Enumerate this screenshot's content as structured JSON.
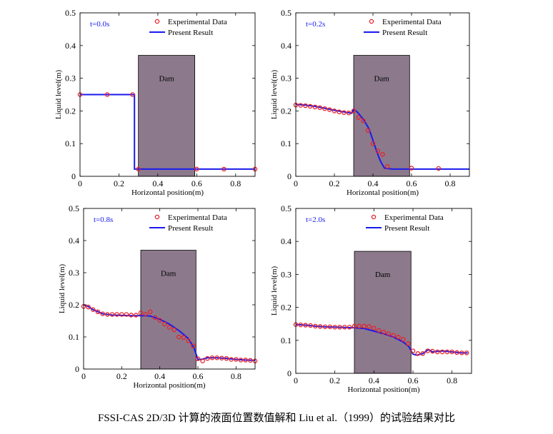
{
  "caption": "FSSI-CAS 2D/3D 计算的液面位置数值解和 Liu et al.（1999）的试验结果对比",
  "colors": {
    "experimental": "#e8202a",
    "present": "#1a1aee",
    "dam_fill": "#8c7a8c",
    "time_label": "#1a1aee"
  },
  "chart_data": [
    {
      "type": "line",
      "time_label": "t=0.0s",
      "xlabel": "Horizontal position(m)",
      "ylabel": "Liquid level(m)",
      "xlim": [
        0,
        0.9
      ],
      "ylim": [
        0,
        0.5
      ],
      "xticks": [
        0,
        0.2,
        0.4,
        0.6,
        0.8
      ],
      "xtick_labels": [
        "0",
        "0.2",
        "0.4",
        "0.6",
        "0.8"
      ],
      "yticks": [
        0,
        0.1,
        0.2,
        0.3,
        0.4,
        0.5
      ],
      "ytick_labels": [
        "0",
        "0.1",
        "0.2",
        "0.3",
        "0.4",
        "0.5"
      ],
      "dam": {
        "label": "Dam",
        "x0": 0.3,
        "x1": 0.59,
        "height": 0.37
      },
      "legend": {
        "position": "top-right",
        "entries": [
          "Experimental Data",
          "Present Result"
        ]
      },
      "series": [
        {
          "name": "Experimental Data",
          "style": "markers",
          "x": [
            0,
            0.14,
            0.27,
            0.3,
            0.6,
            0.74,
            0.9
          ],
          "y": [
            0.25,
            0.25,
            0.25,
            0.022,
            0.022,
            0.022,
            0.022
          ]
        },
        {
          "name": "Present Result",
          "style": "line",
          "x": [
            0,
            0.28,
            0.28,
            0.9
          ],
          "y": [
            0.25,
            0.25,
            0.022,
            0.022
          ]
        }
      ]
    },
    {
      "type": "line",
      "time_label": "t=0.2s",
      "xlabel": "Horizontal position(m)",
      "ylabel": "Liquid level(m)",
      "xlim": [
        0,
        0.9
      ],
      "ylim": [
        0,
        0.5
      ],
      "xticks": [
        0,
        0.2,
        0.4,
        0.6,
        0.8
      ],
      "xtick_labels": [
        "0",
        "0.2",
        "0.4",
        "0.6",
        "0.8"
      ],
      "yticks": [
        0,
        0.1,
        0.2,
        0.3,
        0.4,
        0.5
      ],
      "ytick_labels": [
        "0",
        "0.1",
        "0.2",
        "0.3",
        "0.4",
        "0.5"
      ],
      "dam": {
        "label": "Dam",
        "x0": 0.3,
        "x1": 0.59,
        "height": 0.37
      },
      "legend": {
        "position": "top-right",
        "entries": [
          "Experimental Data",
          "Present Result"
        ]
      },
      "series": [
        {
          "name": "Experimental Data",
          "style": "markers",
          "x": [
            0,
            0.025,
            0.05,
            0.075,
            0.1,
            0.125,
            0.15,
            0.175,
            0.2,
            0.225,
            0.25,
            0.275,
            0.3,
            0.325,
            0.35,
            0.375,
            0.4,
            0.425,
            0.45,
            0.475,
            0.6,
            0.74
          ],
          "y": [
            0.218,
            0.217,
            0.216,
            0.214,
            0.212,
            0.21,
            0.207,
            0.204,
            0.2,
            0.197,
            0.195,
            0.194,
            0.2,
            0.18,
            0.17,
            0.14,
            0.1,
            0.077,
            0.067,
            0.03,
            0.025,
            0.024
          ]
        },
        {
          "name": "Present Result",
          "style": "line",
          "x": [
            0,
            0.05,
            0.1,
            0.15,
            0.2,
            0.25,
            0.29,
            0.3,
            0.32,
            0.35,
            0.38,
            0.4,
            0.42,
            0.44,
            0.46,
            0.5,
            0.6,
            0.9
          ],
          "y": [
            0.22,
            0.218,
            0.214,
            0.208,
            0.202,
            0.197,
            0.193,
            0.206,
            0.196,
            0.175,
            0.145,
            0.11,
            0.075,
            0.045,
            0.025,
            0.022,
            0.022,
            0.022
          ]
        }
      ]
    },
    {
      "type": "line",
      "time_label": "t=0.8s",
      "xlabel": "Horizontal position(m)",
      "ylabel": "Liquid level(m)",
      "xlim": [
        0,
        0.9
      ],
      "ylim": [
        0,
        0.5
      ],
      "xticks": [
        0,
        0.2,
        0.4,
        0.6,
        0.8
      ],
      "xtick_labels": [
        "0",
        "0.2",
        "0.4",
        "0.6",
        "0.8"
      ],
      "yticks": [
        0,
        0.1,
        0.2,
        0.3,
        0.4,
        0.5
      ],
      "ytick_labels": [
        "0",
        "0.1",
        "0.2",
        "0.3",
        "0.4",
        "0.5"
      ],
      "dam": {
        "label": "Dam",
        "x0": 0.3,
        "x1": 0.59,
        "height": 0.37
      },
      "legend": {
        "position": "top-right",
        "entries": [
          "Experimental Data",
          "Present Result"
        ]
      },
      "series": [
        {
          "name": "Experimental Data",
          "style": "markers",
          "x": [
            0,
            0.025,
            0.05,
            0.075,
            0.1,
            0.125,
            0.15,
            0.175,
            0.2,
            0.225,
            0.25,
            0.275,
            0.3,
            0.325,
            0.35,
            0.375,
            0.4,
            0.425,
            0.45,
            0.475,
            0.5,
            0.525,
            0.55,
            0.575,
            0.6,
            0.625,
            0.65,
            0.675,
            0.7,
            0.725,
            0.75,
            0.775,
            0.8,
            0.825,
            0.85,
            0.875,
            0.9
          ],
          "y": [
            0.195,
            0.193,
            0.185,
            0.178,
            0.172,
            0.17,
            0.17,
            0.17,
            0.17,
            0.17,
            0.168,
            0.168,
            0.175,
            0.17,
            0.178,
            0.16,
            0.152,
            0.14,
            0.13,
            0.122,
            0.1,
            0.098,
            0.088,
            0.072,
            0.032,
            0.025,
            0.033,
            0.035,
            0.035,
            0.034,
            0.033,
            0.03,
            0.03,
            0.028,
            0.028,
            0.027,
            0.025
          ]
        },
        {
          "name": "Present Result",
          "style": "line",
          "x": [
            0,
            0.02,
            0.05,
            0.1,
            0.15,
            0.2,
            0.25,
            0.3,
            0.35,
            0.4,
            0.45,
            0.5,
            0.55,
            0.58,
            0.6,
            0.62,
            0.65,
            0.7,
            0.75,
            0.8,
            0.85,
            0.9
          ],
          "y": [
            0.2,
            0.196,
            0.185,
            0.172,
            0.168,
            0.167,
            0.166,
            0.166,
            0.165,
            0.155,
            0.14,
            0.12,
            0.095,
            0.065,
            0.03,
            0.03,
            0.035,
            0.035,
            0.033,
            0.03,
            0.028,
            0.027
          ]
        }
      ]
    },
    {
      "type": "line",
      "time_label": "t=2.0s",
      "xlabel": "Horizontal position(m)",
      "ylabel": "Liquid level(m)",
      "xlim": [
        0,
        0.9
      ],
      "ylim": [
        0,
        0.5
      ],
      "xticks": [
        0,
        0.2,
        0.4,
        0.6,
        0.8
      ],
      "xtick_labels": [
        "0",
        "0.2",
        "0.4",
        "0.6",
        "0.8"
      ],
      "yticks": [
        0,
        0.1,
        0.2,
        0.3,
        0.4,
        0.5
      ],
      "ytick_labels": [
        "0",
        "0.1",
        "0.2",
        "0.3",
        "0.4",
        "0.5"
      ],
      "dam": {
        "label": "Dam",
        "x0": 0.3,
        "x1": 0.59,
        "height": 0.37
      },
      "legend": {
        "position": "top-right",
        "entries": [
          "Experimental Data",
          "Present Result"
        ]
      },
      "series": [
        {
          "name": "Experimental Data",
          "style": "markers",
          "x": [
            0,
            0.025,
            0.05,
            0.075,
            0.1,
            0.125,
            0.15,
            0.175,
            0.2,
            0.225,
            0.25,
            0.275,
            0.3,
            0.325,
            0.35,
            0.375,
            0.4,
            0.425,
            0.45,
            0.475,
            0.5,
            0.525,
            0.55,
            0.575,
            0.6,
            0.625,
            0.65,
            0.675,
            0.7,
            0.725,
            0.75,
            0.775,
            0.8,
            0.825,
            0.85,
            0.875
          ],
          "y": [
            0.148,
            0.147,
            0.146,
            0.145,
            0.143,
            0.142,
            0.141,
            0.141,
            0.14,
            0.14,
            0.14,
            0.14,
            0.143,
            0.143,
            0.143,
            0.142,
            0.137,
            0.13,
            0.125,
            0.12,
            0.115,
            0.11,
            0.103,
            0.09,
            0.068,
            0.06,
            0.06,
            0.068,
            0.067,
            0.065,
            0.065,
            0.065,
            0.065,
            0.063,
            0.062,
            0.062
          ]
        },
        {
          "name": "Present Result",
          "style": "line",
          "x": [
            0,
            0.05,
            0.1,
            0.15,
            0.2,
            0.25,
            0.3,
            0.35,
            0.4,
            0.45,
            0.5,
            0.55,
            0.58,
            0.6,
            0.62,
            0.65,
            0.68,
            0.7,
            0.75,
            0.8,
            0.85,
            0.88
          ],
          "y": [
            0.148,
            0.146,
            0.143,
            0.141,
            0.14,
            0.139,
            0.138,
            0.136,
            0.128,
            0.12,
            0.11,
            0.095,
            0.08,
            0.058,
            0.055,
            0.06,
            0.072,
            0.065,
            0.068,
            0.065,
            0.062,
            0.062
          ]
        }
      ]
    }
  ]
}
